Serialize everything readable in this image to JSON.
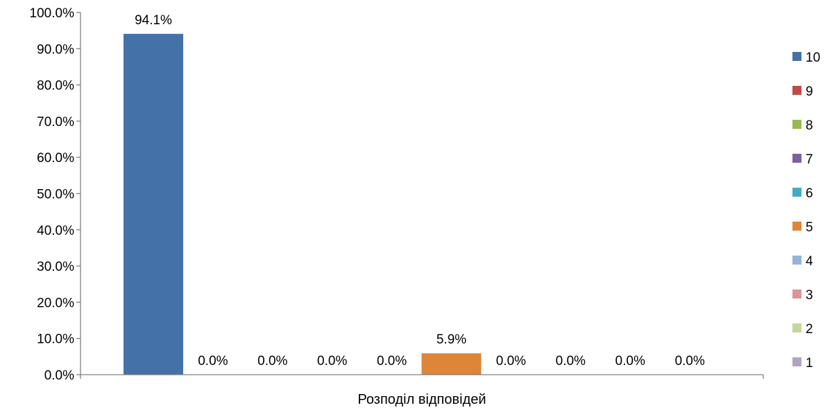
{
  "chart_data": {
    "type": "bar",
    "title": "",
    "xlabel": "",
    "ylabel": "",
    "categories": [
      "Розподіл відповідей"
    ],
    "ylim": [
      0,
      100
    ],
    "yticks": [
      0,
      10,
      20,
      30,
      40,
      50,
      60,
      70,
      80,
      90,
      100
    ],
    "ytick_labels": [
      "0.0%",
      "10.0%",
      "20.0%",
      "30.0%",
      "40.0%",
      "50.0%",
      "60.0%",
      "70.0%",
      "80.0%",
      "90.0%",
      "100.0%"
    ],
    "grid": false,
    "legend_position": "right",
    "series": [
      {
        "name": "10",
        "values": [
          94.1
        ],
        "label": "94.1%",
        "color": "#4472A8"
      },
      {
        "name": "9",
        "values": [
          0.0
        ],
        "label": "0.0%",
        "color": "#BE4B48"
      },
      {
        "name": "8",
        "values": [
          0.0
        ],
        "label": "0.0%",
        "color": "#98B954"
      },
      {
        "name": "7",
        "values": [
          0.0
        ],
        "label": "0.0%",
        "color": "#7D60A0"
      },
      {
        "name": "6",
        "values": [
          0.0
        ],
        "label": "0.0%",
        "color": "#46AAC5"
      },
      {
        "name": "5",
        "values": [
          5.9
        ],
        "label": "5.9%",
        "color": "#DD8538"
      },
      {
        "name": "4",
        "values": [
          0.0
        ],
        "label": "0.0%",
        "color": "#95B3D7"
      },
      {
        "name": "3",
        "values": [
          0.0
        ],
        "label": "0.0%",
        "color": "#D99694"
      },
      {
        "name": "2",
        "values": [
          0.0
        ],
        "label": "0.0%",
        "color": "#C3D69B"
      },
      {
        "name": "1",
        "values": [
          0.0
        ],
        "label": "0.0%",
        "color": "#B3A2C7"
      }
    ]
  }
}
